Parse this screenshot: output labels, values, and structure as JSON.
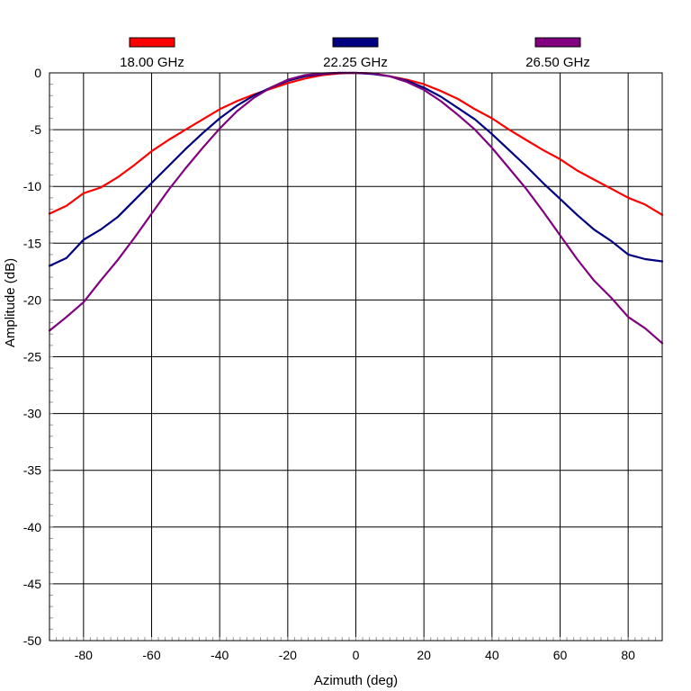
{
  "chart_data": {
    "type": "line",
    "xlabel": "Azimuth (deg)",
    "ylabel": "Amplitude (dB)",
    "xlim": [
      -90,
      90
    ],
    "ylim": [
      -50,
      0
    ],
    "xticks": [
      -80,
      -60,
      -40,
      -20,
      0,
      20,
      40,
      60,
      80
    ],
    "yticks": [
      0,
      -5,
      -10,
      -15,
      -20,
      -25,
      -30,
      -35,
      -40,
      -45,
      -50
    ],
    "grid": true,
    "legend_position": "top",
    "x": [
      -90,
      -85,
      -80,
      -75,
      -70,
      -65,
      -60,
      -55,
      -50,
      -45,
      -40,
      -35,
      -30,
      -25,
      -20,
      -15,
      -10,
      -5,
      0,
      5,
      10,
      15,
      20,
      25,
      30,
      35,
      40,
      45,
      50,
      55,
      60,
      65,
      70,
      75,
      80,
      85,
      90
    ],
    "series": [
      {
        "name": "18.00 GHz",
        "color": "#ff0000",
        "values": [
          -12.4,
          -11.7,
          -10.6,
          -10.1,
          -9.2,
          -8.1,
          -6.9,
          -5.9,
          -5.0,
          -4.1,
          -3.2,
          -2.5,
          -1.9,
          -1.4,
          -0.9,
          -0.5,
          -0.2,
          -0.05,
          0,
          -0.05,
          -0.3,
          -0.6,
          -1.0,
          -1.6,
          -2.3,
          -3.2,
          -4.0,
          -5.0,
          -5.9,
          -6.8,
          -7.6,
          -8.6,
          -9.4,
          -10.2,
          -11.0,
          -11.6,
          -12.5
        ]
      },
      {
        "name": "22.25 GHz",
        "color": "#000080",
        "values": [
          -17.0,
          -16.3,
          -14.7,
          -13.8,
          -12.7,
          -11.2,
          -9.7,
          -8.2,
          -6.7,
          -5.3,
          -4.0,
          -2.9,
          -2.0,
          -1.3,
          -0.7,
          -0.3,
          -0.1,
          0,
          0,
          -0.1,
          -0.3,
          -0.7,
          -1.3,
          -2.1,
          -3.1,
          -4.1,
          -5.4,
          -6.8,
          -8.2,
          -9.7,
          -11.1,
          -12.5,
          -13.8,
          -14.8,
          -16.0,
          -16.4,
          -16.6
        ]
      },
      {
        "name": "26.50 GHz",
        "color": "#800080",
        "values": [
          -22.7,
          -21.5,
          -20.2,
          -18.3,
          -16.5,
          -14.5,
          -12.4,
          -10.3,
          -8.4,
          -6.6,
          -4.9,
          -3.4,
          -2.2,
          -1.3,
          -0.6,
          -0.2,
          -0.05,
          0,
          0,
          -0.05,
          -0.3,
          -0.8,
          -1.5,
          -2.5,
          -3.7,
          -5.0,
          -6.6,
          -8.4,
          -10.2,
          -12.2,
          -14.3,
          -16.4,
          -18.3,
          -19.8,
          -21.5,
          -22.5,
          -23.8
        ]
      }
    ]
  }
}
